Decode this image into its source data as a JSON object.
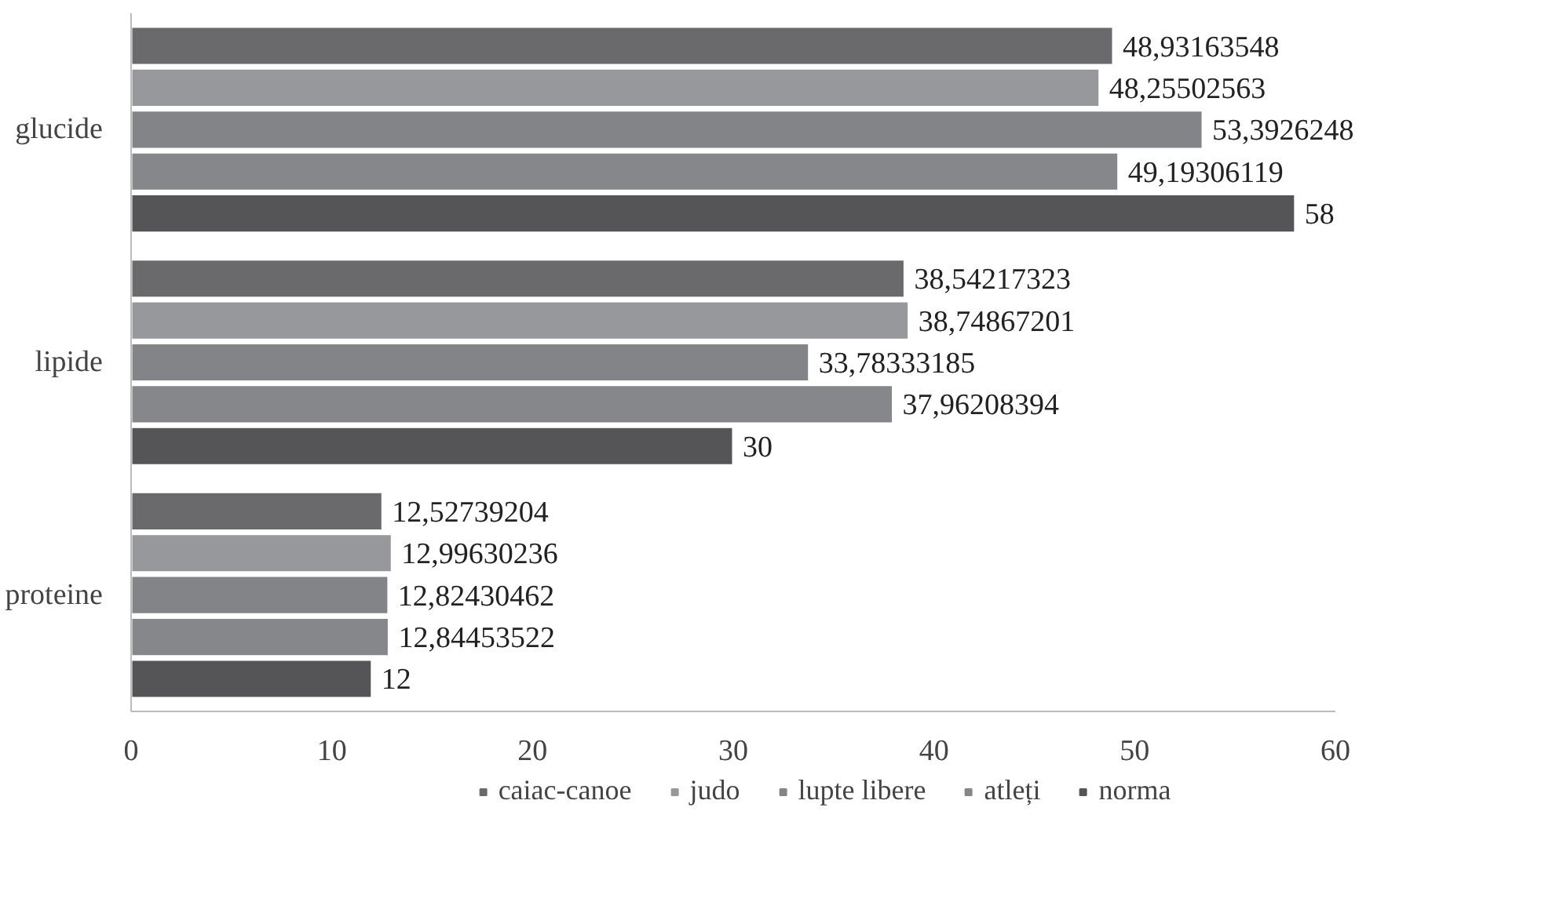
{
  "chart_data": {
    "type": "bar",
    "orientation": "horizontal",
    "categories": [
      "glucide",
      "lipide",
      "proteine"
    ],
    "series": [
      {
        "name": "caiac-canoe",
        "color": "#6a6a6c",
        "values": [
          48.93163548,
          38.54217323,
          12.52739204
        ],
        "value_labels": [
          "48,93163548",
          "38,54217323",
          "12,52739204"
        ]
      },
      {
        "name": "judo",
        "color": "#97989b",
        "values": [
          48.25502563,
          38.74867201,
          12.99630236
        ],
        "value_labels": [
          "48,25502563",
          "38,74867201",
          "12,99630236"
        ]
      },
      {
        "name": "lupte libere",
        "color": "#838487",
        "values": [
          53.3926248,
          33.78333185,
          12.82430462
        ],
        "value_labels": [
          "53,3926248",
          "33,78333185",
          "12,82430462"
        ]
      },
      {
        "name": "atleți",
        "color": "#86878a",
        "values": [
          49.19306119,
          37.96208394,
          12.84453522
        ],
        "value_labels": [
          "49,19306119",
          "37,96208394",
          "12,84453522"
        ]
      },
      {
        "name": "norma",
        "color": "#555557",
        "values": [
          58,
          30,
          12
        ],
        "value_labels": [
          "58",
          "30",
          "12"
        ]
      }
    ],
    "xlim": [
      0,
      60
    ],
    "xticks": [
      0,
      10,
      20,
      30,
      40,
      50,
      60
    ],
    "grid": false,
    "legend": "bottom"
  }
}
